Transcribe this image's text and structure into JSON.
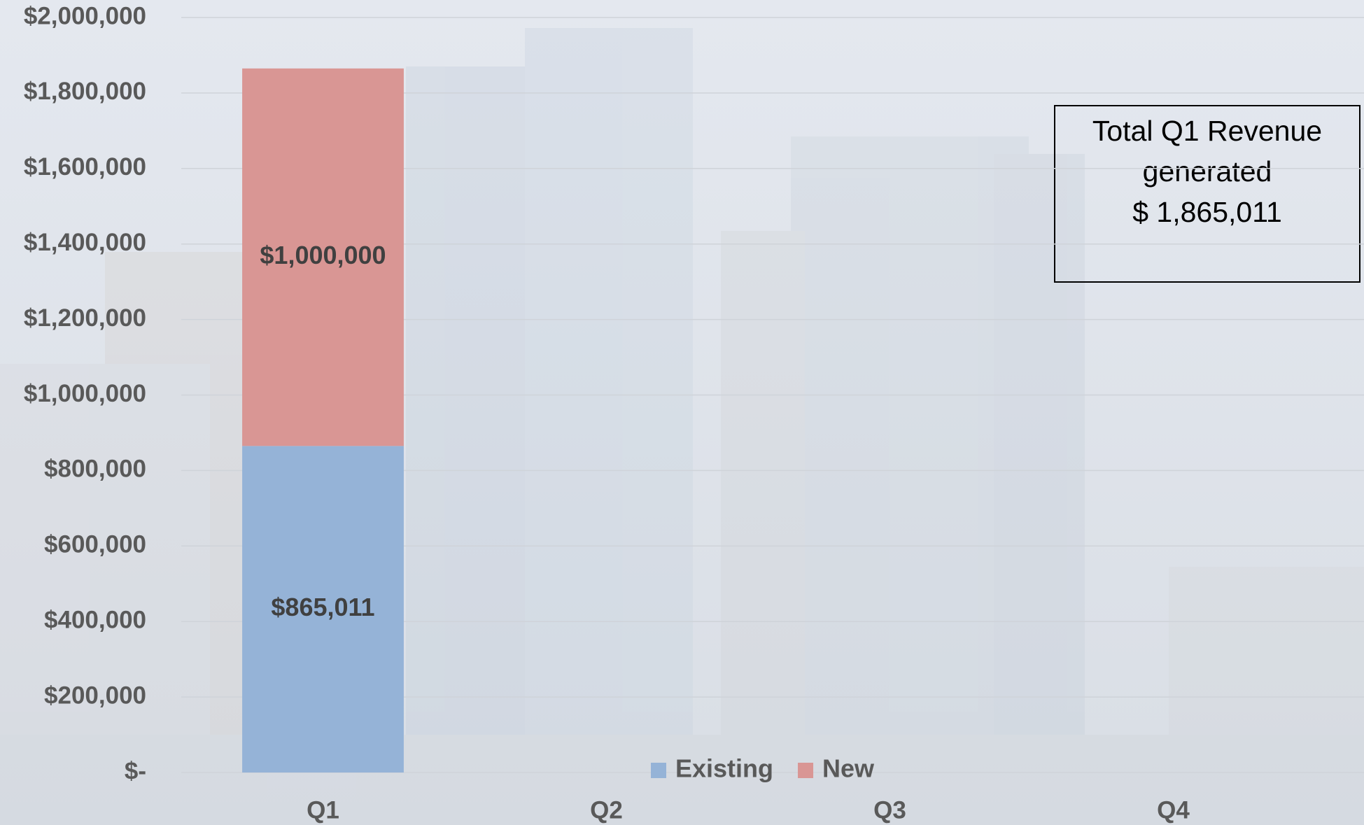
{
  "chart_data": {
    "type": "stacked-bar",
    "categories": [
      "Q1",
      "Q2",
      "Q3",
      "Q4"
    ],
    "series": [
      {
        "name": "Existing",
        "color": "#95b3d7",
        "values": [
          865011,
          null,
          null,
          null
        ],
        "value_labels": [
          "$865,011",
          null,
          null,
          null
        ]
      },
      {
        "name": "New",
        "color": "#d99694",
        "values": [
          1000000,
          null,
          null,
          null
        ],
        "value_labels": [
          "$1,000,000",
          null,
          null,
          null
        ]
      }
    ],
    "ylim": [
      0,
      2000000
    ],
    "yticks": [
      {
        "value": 0,
        "label": "$-"
      },
      {
        "value": 200000,
        "label": "$200,000"
      },
      {
        "value": 400000,
        "label": "$400,000"
      },
      {
        "value": 600000,
        "label": "$600,000"
      },
      {
        "value": 800000,
        "label": "$800,000"
      },
      {
        "value": 1000000,
        "label": "$1,000,000"
      },
      {
        "value": 1200000,
        "label": "$1,200,000"
      },
      {
        "value": 1400000,
        "label": "$1,400,000"
      },
      {
        "value": 1600000,
        "label": "$1,600,000"
      },
      {
        "value": 1800000,
        "label": "$1,800,000"
      },
      {
        "value": 2000000,
        "label": "$2,000,000"
      }
    ],
    "grid": true,
    "legend": "bottom",
    "annotation": [
      "Total Q1 Revenue",
      "generated",
      "$ 1,865,011"
    ]
  }
}
